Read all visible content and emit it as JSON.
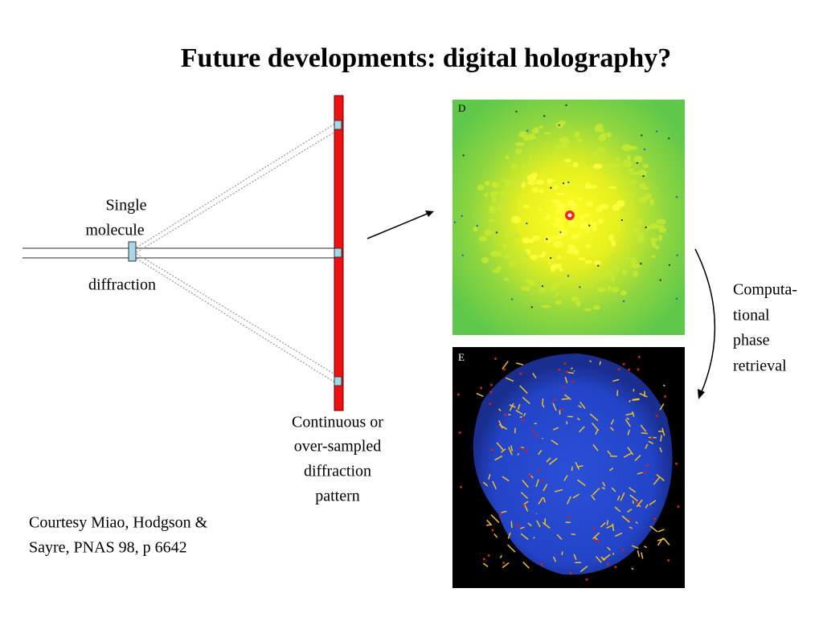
{
  "title": "Future developments: digital holography?",
  "diagram": {
    "molecule_label": [
      "Single",
      "molecule"
    ],
    "beam_label": "diffraction",
    "detector_label": [
      "Continuous or",
      "over-sampled",
      "diffraction",
      "pattern"
    ]
  },
  "images": [
    {
      "label": "D"
    },
    {
      "label": "E"
    }
  ],
  "arrow_label": [
    "Computa-",
    "tional",
    "phase",
    "retrieval"
  ],
  "credit": [
    "Courtesy Miao, Hodgson &",
    "Sayre, PNAS 98, p 6642"
  ]
}
